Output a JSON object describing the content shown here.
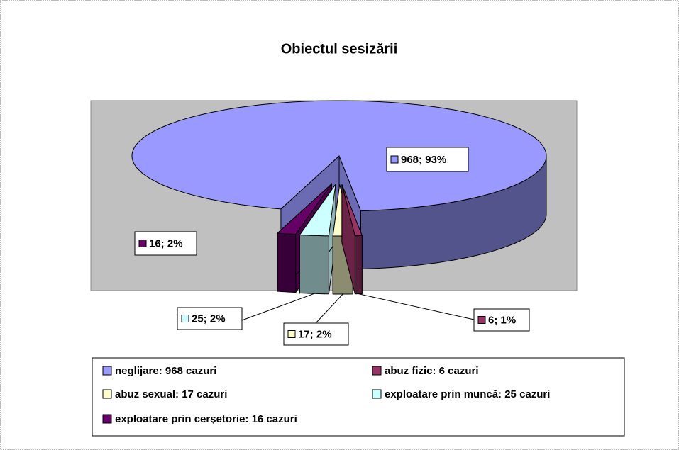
{
  "chart_data": {
    "type": "pie",
    "title": "Obiectul sesizării",
    "categories": [
      "neglijare: 968 cazuri",
      "abuz fizic: 6 cazuri",
      "abuz sexual: 17 cazuri",
      "exploatare prin muncă: 25 cazuri",
      "exploatare prin cerşetorie: 16 cazuri"
    ],
    "values": [
      968,
      6,
      17,
      25,
      16
    ],
    "value_labels": [
      "968; 93%",
      "6; 1%",
      "17; 2%",
      "25; 2%",
      "16; 2%"
    ],
    "colors": [
      "#9999ff",
      "#993366",
      "#ffffcc",
      "#ccffff",
      "#660066"
    ],
    "legend": "bottom"
  }
}
